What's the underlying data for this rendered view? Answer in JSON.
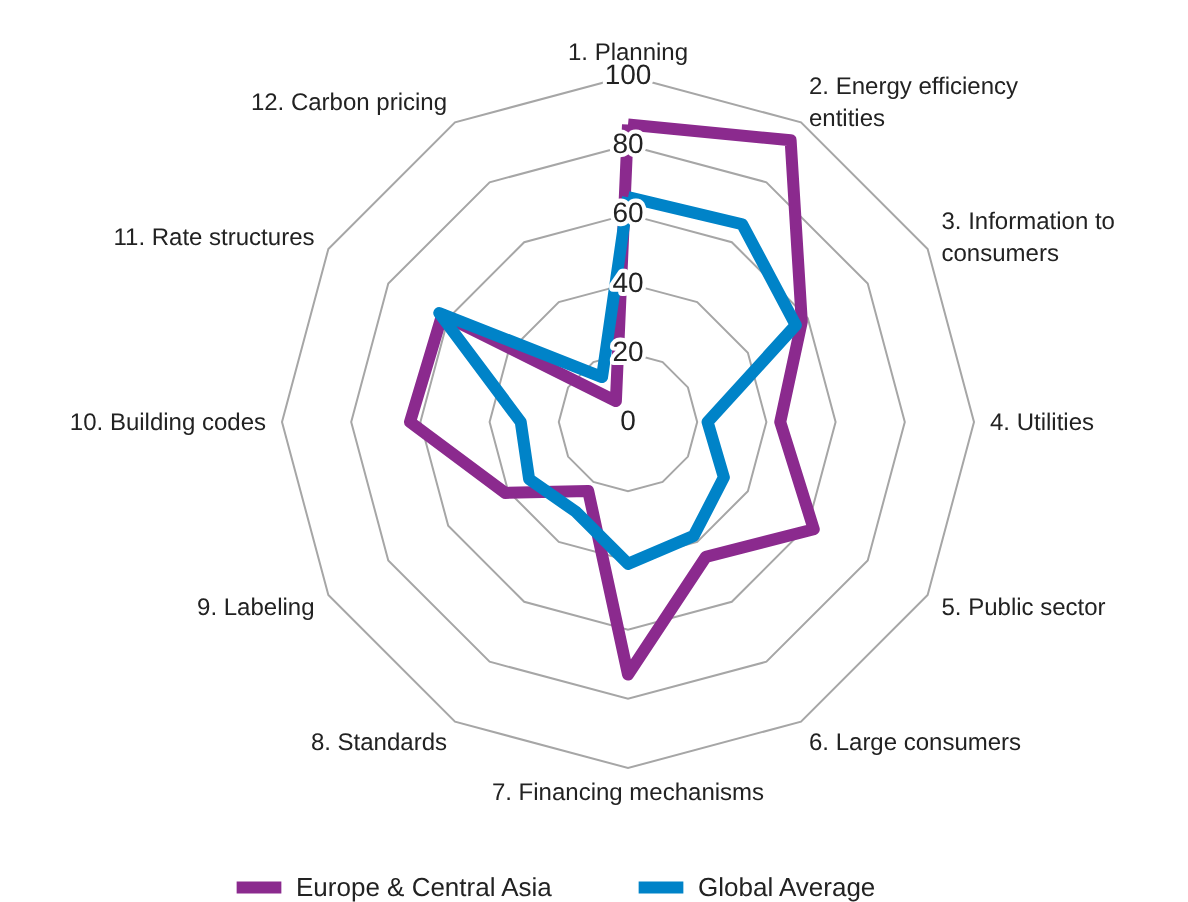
{
  "chart_data": {
    "type": "radar",
    "categories": [
      "1. Planning",
      "2. Energy efficiency entities",
      "3. Information to consumers",
      "4. Utilities",
      "5. Public sector",
      "6. Large consumers",
      "7. Financing mechanisms",
      "8. Standards",
      "9. Labeling",
      "10. Building codes",
      "11. Rate structures",
      "12. Carbon pricing"
    ],
    "series": [
      {
        "name": "Europe & Central Asia",
        "color": "#8b2a8e",
        "values": [
          86,
          94,
          58,
          44,
          62,
          45,
          73,
          23,
          41,
          63,
          62,
          7
        ]
      },
      {
        "name": "Global Average",
        "color": "#0083c8",
        "values": [
          65,
          66,
          56,
          23,
          32,
          38,
          41,
          30,
          33,
          31,
          63,
          15
        ]
      }
    ],
    "ylim": [
      0,
      100
    ],
    "yticks": [
      0,
      20,
      40,
      60,
      80,
      100
    ],
    "grid": true,
    "legend": "bottom"
  }
}
